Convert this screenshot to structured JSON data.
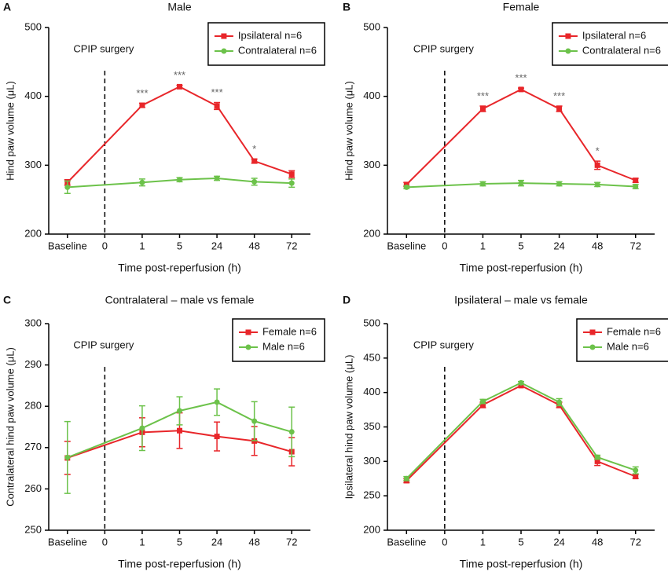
{
  "chart_data": [
    {
      "type": "line",
      "panel_label": "A",
      "title": "Male",
      "xlabel": "Time post-reperfusion (h)",
      "ylabel": "Hind paw volume (μL)",
      "xlim": [
        -0.5,
        6.5
      ],
      "xticks": [
        {
          "value": 0,
          "label": "Baseline"
        },
        {
          "value": 1,
          "label": "0"
        },
        {
          "value": 2,
          "label": "1"
        },
        {
          "value": 3,
          "label": "5"
        },
        {
          "value": 4,
          "label": "24"
        },
        {
          "value": 5,
          "label": "48"
        },
        {
          "value": 6,
          "label": "72"
        }
      ],
      "ylim": [
        200,
        500
      ],
      "yticks": [
        200,
        300,
        400,
        500
      ],
      "legend_loc": "upper right",
      "vline": {
        "x": 1,
        "label": "CPIP surgery"
      },
      "x": [
        0,
        2,
        3,
        4,
        5,
        6
      ],
      "series": [
        {
          "name": "Ipsilateral n=6",
          "color": "#e8262a",
          "marker": "square",
          "values": [
            275,
            387,
            414,
            386,
            306,
            287
          ],
          "errors": [
            4,
            3,
            2,
            5,
            3,
            5
          ]
        },
        {
          "name": "Contralateral n=6",
          "color": "#6cc24a",
          "marker": "circle",
          "values": [
            268,
            275,
            279,
            281,
            276,
            274
          ],
          "errors": [
            9,
            5,
            3,
            3,
            5,
            6
          ]
        }
      ],
      "annotations": [
        {
          "text": "***",
          "x": 2
        },
        {
          "text": "***",
          "x": 3
        },
        {
          "text": "***",
          "x": 4
        },
        {
          "text": "*",
          "x": 5
        }
      ]
    },
    {
      "type": "line",
      "panel_label": "B",
      "title": "Female",
      "xlabel": "Time post-reperfusion (h)",
      "ylabel": "Hind paw volume (μL)",
      "xlim": [
        -0.5,
        6.5
      ],
      "xticks": [
        {
          "value": 0,
          "label": "Baseline"
        },
        {
          "value": 1,
          "label": "0"
        },
        {
          "value": 2,
          "label": "1"
        },
        {
          "value": 3,
          "label": "5"
        },
        {
          "value": 4,
          "label": "24"
        },
        {
          "value": 5,
          "label": "48"
        },
        {
          "value": 6,
          "label": "72"
        }
      ],
      "ylim": [
        200,
        500
      ],
      "yticks": [
        200,
        300,
        400,
        500
      ],
      "legend_loc": "upper right",
      "vline": {
        "x": 1,
        "label": "CPIP surgery"
      },
      "x": [
        0,
        2,
        3,
        4,
        5,
        6
      ],
      "series": [
        {
          "name": "Ipsilateral n=6",
          "color": "#e8262a",
          "marker": "square",
          "values": [
            272,
            382,
            410,
            382,
            300,
            278
          ],
          "errors": [
            3,
            4,
            2,
            4,
            6,
            3
          ]
        },
        {
          "name": "Contralateral n=6",
          "color": "#6cc24a",
          "marker": "circle",
          "values": [
            268,
            273,
            274,
            273,
            272,
            269
          ],
          "errors": [
            2,
            3,
            4,
            3,
            3,
            3
          ]
        }
      ],
      "annotations": [
        {
          "text": "***",
          "x": 2
        },
        {
          "text": "***",
          "x": 3
        },
        {
          "text": "***",
          "x": 4
        },
        {
          "text": "*",
          "x": 5
        }
      ]
    },
    {
      "type": "line",
      "panel_label": "C",
      "title": "Contralateral – male vs female",
      "xlabel": "Time post-reperfusion (h)",
      "ylabel": "Contralateral hind paw volume (μL)",
      "xlim": [
        -0.5,
        6.5
      ],
      "xticks": [
        {
          "value": 0,
          "label": "Baseline"
        },
        {
          "value": 1,
          "label": "0"
        },
        {
          "value": 2,
          "label": "1"
        },
        {
          "value": 3,
          "label": "5"
        },
        {
          "value": 4,
          "label": "24"
        },
        {
          "value": 5,
          "label": "48"
        },
        {
          "value": 6,
          "label": "72"
        }
      ],
      "ylim": [
        250,
        300
      ],
      "yticks": [
        250,
        260,
        270,
        280,
        290,
        300
      ],
      "legend_loc": "upper right",
      "vline": {
        "x": 1,
        "label": "CPIP surgery"
      },
      "x": [
        0,
        2,
        3,
        4,
        5,
        6
      ],
      "series": [
        {
          "name": "Female n=6",
          "color": "#e8262a",
          "marker": "square",
          "values": [
            267.5,
            273.7,
            274.1,
            272.7,
            271.6,
            269
          ],
          "errors": [
            4,
            3.5,
            4.3,
            3.5,
            3.5,
            3.4
          ]
        },
        {
          "name": "Male n=6",
          "color": "#6cc24a",
          "marker": "circle",
          "values": [
            267.6,
            274.7,
            278.9,
            281,
            276.4,
            273.8
          ],
          "errors": [
            8.7,
            5.4,
            3.4,
            3.2,
            4.7,
            6
          ]
        }
      ]
    },
    {
      "type": "line",
      "panel_label": "D",
      "title": "Ipsilateral – male vs female",
      "xlabel": "Time post-reperfusion (h)",
      "ylabel": "Ipsilateral hind paw volume (μL)",
      "xlim": [
        -0.5,
        6.5
      ],
      "xticks": [
        {
          "value": 0,
          "label": "Baseline"
        },
        {
          "value": 1,
          "label": "0"
        },
        {
          "value": 2,
          "label": "1"
        },
        {
          "value": 3,
          "label": "5"
        },
        {
          "value": 4,
          "label": "24"
        },
        {
          "value": 5,
          "label": "48"
        },
        {
          "value": 6,
          "label": "72"
        }
      ],
      "ylim": [
        200,
        500
      ],
      "yticks": [
        200,
        250,
        300,
        350,
        400,
        450,
        500
      ],
      "legend_loc": "upper right",
      "vline": {
        "x": 1,
        "label": "CPIP surgery"
      },
      "x": [
        0,
        2,
        3,
        4,
        5,
        6
      ],
      "series": [
        {
          "name": "Female n=6",
          "color": "#e8262a",
          "marker": "square",
          "values": [
            272,
            382,
            410,
            382,
            300,
            278
          ],
          "errors": [
            3,
            4,
            2,
            4,
            6,
            3
          ]
        },
        {
          "name": "Male n=6",
          "color": "#6cc24a",
          "marker": "circle",
          "values": [
            275,
            387,
            414,
            386,
            306,
            287
          ],
          "errors": [
            3,
            3,
            2,
            5,
            3,
            5
          ]
        }
      ]
    }
  ]
}
